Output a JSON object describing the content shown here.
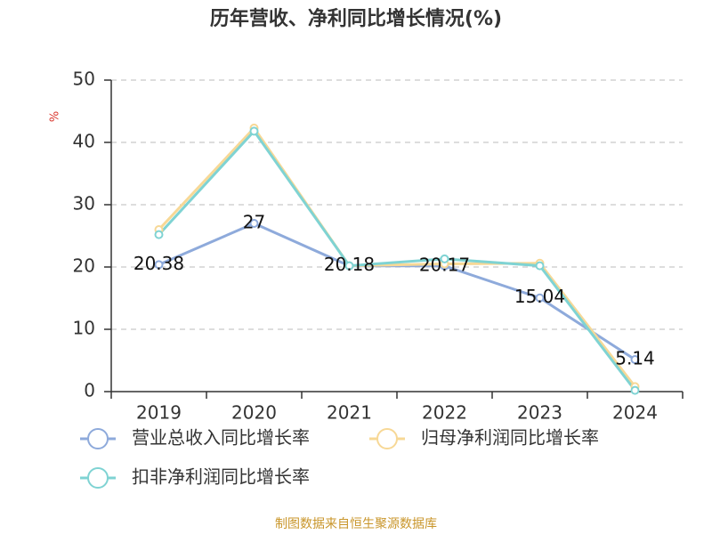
{
  "chart_data": {
    "type": "line",
    "title": "历年营收、净利同比增长情况(%)",
    "y_label": "%",
    "source": "制图数据来自恒生聚源数据库",
    "categories": [
      "2019",
      "2020",
      "2021",
      "2022",
      "2023",
      "2024"
    ],
    "series": [
      {
        "name": "营业总收入同比增长率",
        "color": "#8eaadb",
        "values": [
          20.38,
          27,
          20.18,
          20.17,
          15.04,
          5.14
        ],
        "value_labels": [
          "20.38",
          "27",
          "20.18",
          "20.17",
          "15.04",
          "5.14"
        ]
      },
      {
        "name": "归母净利润同比增长率",
        "color": "#f7d896",
        "values": [
          26,
          42.3,
          20.2,
          20.5,
          20.6,
          0.8
        ]
      },
      {
        "name": "扣非净利润同比增长率",
        "color": "#7fd3d3",
        "values": [
          25.2,
          41.8,
          20.2,
          21.3,
          20.2,
          0.2
        ]
      }
    ],
    "ylim": [
      0,
      50
    ],
    "yticks": [
      0,
      10,
      20,
      30,
      40,
      50
    ],
    "grid": true
  }
}
